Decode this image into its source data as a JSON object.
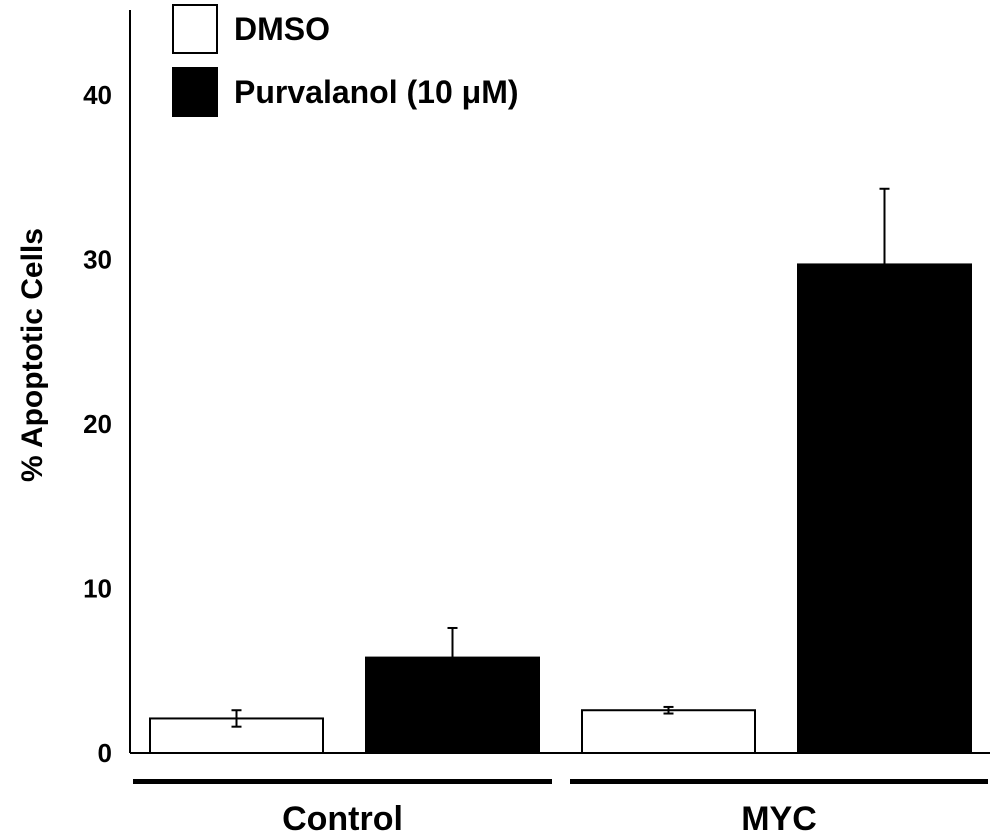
{
  "chart_data": {
    "type": "bar",
    "title": "",
    "xlabel": "",
    "ylabel": "% Apoptotic Cells",
    "ylim": [
      0,
      45
    ],
    "yticks": [
      0,
      10,
      20,
      30,
      40
    ],
    "grid": false,
    "legend_position": "top-left",
    "categories": [
      "Control",
      "MYC"
    ],
    "series": [
      {
        "name": "DMSO",
        "color": "#ffffff",
        "values": [
          2.1,
          2.6
        ],
        "errors": [
          0.5,
          0.2
        ]
      },
      {
        "name": "Purvalanol (10 μM)",
        "color": "#000000",
        "values": [
          5.8,
          29.7
        ],
        "errors": [
          1.8,
          4.6
        ]
      }
    ]
  }
}
